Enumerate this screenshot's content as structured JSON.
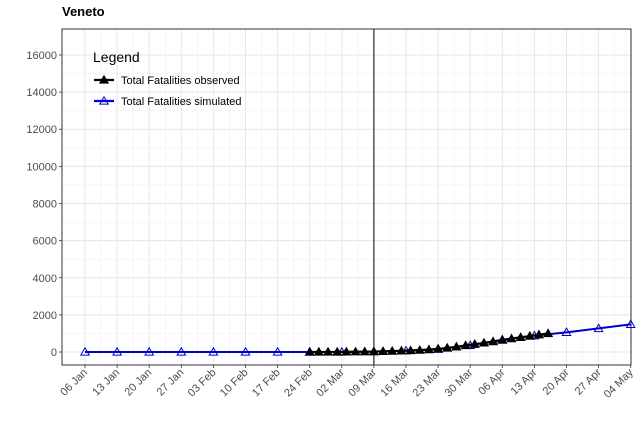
{
  "chart_data": {
    "type": "line",
    "title": "Veneto",
    "xlabel": "",
    "ylabel": "",
    "x_tick_labels": [
      "06 Jan",
      "13 Jan",
      "20 Jan",
      "27 Jan",
      "03 Feb",
      "10 Feb",
      "17 Feb",
      "24 Feb",
      "02 Mar",
      "09 Mar",
      "16 Mar",
      "23 Mar",
      "30 Mar",
      "06 Apr",
      "13 Apr",
      "20 Apr",
      "27 Apr",
      "04 May"
    ],
    "y_ticks": [
      0,
      2000,
      4000,
      6000,
      8000,
      10000,
      12000,
      14000,
      16000
    ],
    "ylim": [
      -700,
      17400
    ],
    "grid": true,
    "legend": {
      "title": "Legend",
      "position": "top-left",
      "entries": [
        "Total Fatalities observed",
        "Total Fatalities simulated"
      ]
    },
    "vline_label": "09 Mar",
    "series": [
      {
        "name": "Total Fatalities observed",
        "color": "#000000",
        "marker": "filled-triangle",
        "x": [
          "24 Feb",
          "26 Feb",
          "28 Feb",
          "01 Mar",
          "03 Mar",
          "05 Mar",
          "07 Mar",
          "09 Mar",
          "11 Mar",
          "13 Mar",
          "15 Mar",
          "17 Mar",
          "19 Mar",
          "21 Mar",
          "23 Mar",
          "25 Mar",
          "27 Mar",
          "29 Mar",
          "31 Mar",
          "02 Apr",
          "04 Apr",
          "06 Apr",
          "08 Apr",
          "10 Apr",
          "12 Apr",
          "14 Apr",
          "16 Apr"
        ],
        "values": [
          1,
          2,
          3,
          5,
          8,
          12,
          18,
          25,
          35,
          50,
          65,
          80,
          100,
          130,
          170,
          220,
          280,
          350,
          420,
          490,
          560,
          640,
          720,
          790,
          860,
          930,
          1000
        ]
      },
      {
        "name": "Total Fatalities simulated",
        "color": "#0000cc",
        "marker": "open-triangle",
        "x": [
          "06 Jan",
          "13 Jan",
          "20 Jan",
          "27 Jan",
          "03 Feb",
          "10 Feb",
          "17 Feb",
          "24 Feb",
          "02 Mar",
          "09 Mar",
          "16 Mar",
          "23 Mar",
          "30 Mar",
          "06 Apr",
          "13 Apr",
          "20 Apr",
          "27 Apr",
          "04 May"
        ],
        "values": [
          0,
          0,
          0,
          0,
          0,
          0,
          0,
          0,
          3,
          20,
          70,
          150,
          360,
          660,
          880,
          1060,
          1270,
          1490
        ]
      }
    ]
  }
}
